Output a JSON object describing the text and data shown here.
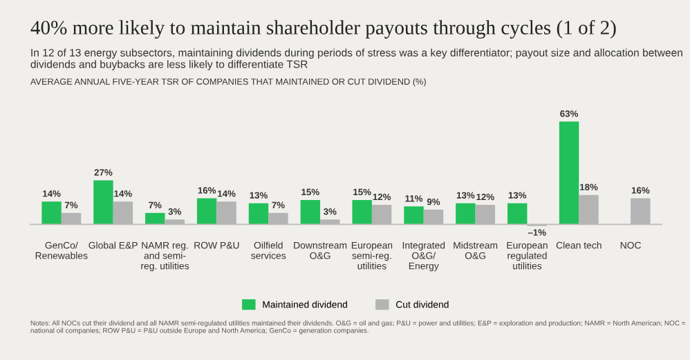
{
  "chart_data": {
    "type": "bar",
    "title": "40% more likely to maintain shareholder payouts through cycles (1 of 2)",
    "subtitle": "In 12 of 13 energy subsectors, maintaining dividends during periods of stress was a key differentiator; payout size and allocation between dividends and buybacks are less likely to differentiate TSR",
    "ylabel": "AVERAGE ANNUAL FIVE-YEAR TSR OF COMPANIES THAT MAINTAINED OR CUT DIVIDEND (%)",
    "categories": [
      "GenCo/\nRenewables",
      "Global E&P",
      "NAMR reg.\nand semi-\nreg. utilities",
      "ROW P&U",
      "Oilfield\nservices",
      "Downstream\nO&G",
      "European\nsemi-reg.\nutilities",
      "Integrated\nO&G/\nEnergy",
      "Midstream\nO&G",
      "European\nregulated\nutilities",
      "Clean tech",
      "NOC"
    ],
    "series": [
      {
        "name": "Maintained dividend",
        "color": "#22c05a",
        "values": [
          14,
          27,
          7,
          16,
          13,
          15,
          15,
          11,
          13,
          13,
          63,
          null
        ],
        "value_labels": [
          "14%",
          "27%",
          "7%",
          "16%",
          "13%",
          "15%",
          "15%",
          "11%",
          "13%",
          "13%",
          "63%",
          null
        ]
      },
      {
        "name": "Cut dividend",
        "color": "#b4b4b4",
        "values": [
          7,
          14,
          3,
          14,
          7,
          3,
          12,
          9,
          12,
          -1,
          18,
          16
        ],
        "value_labels": [
          "7%",
          "14%",
          "3%",
          "14%",
          "7%",
          "3%",
          "12%",
          "9%",
          "12%",
          "–1%",
          "18%",
          "16%"
        ]
      }
    ],
    "legend": "bottom",
    "grid": false,
    "annotations": [
      "Notes: All NOCs cut their dividend and all NAMR semi-regulated utilities maintained their dividends. O&G = oil and gas; P&U = power and utilities; E&P = exploration and production; NAMR = North American; NOC = national oil companies; ROW P&U = P&U outside Europe and North America; GenCo = generation companies."
    ]
  }
}
